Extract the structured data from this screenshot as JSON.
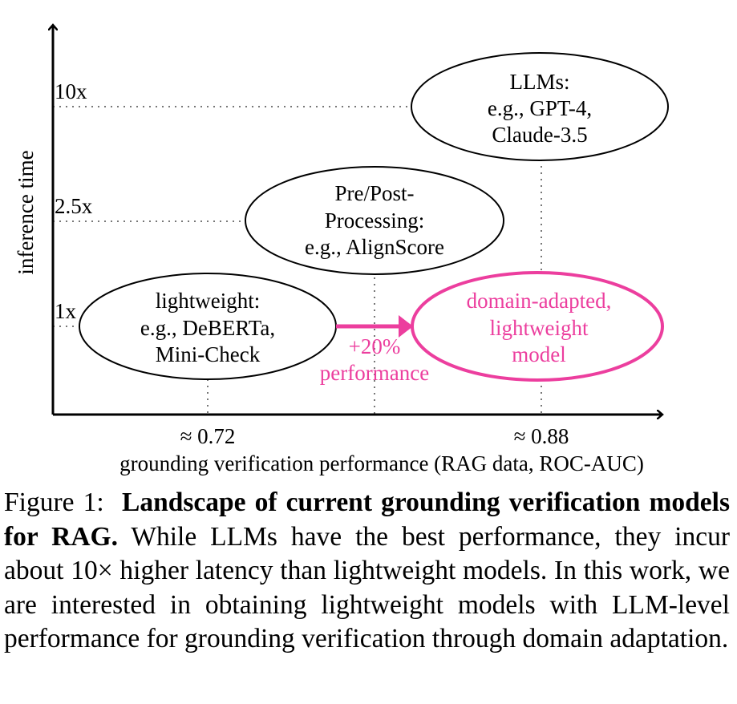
{
  "diagram": {
    "y_axis_label": "inference time",
    "x_axis_label": "grounding verification performance (RAG data, ROC-AUC)",
    "y_ticks": [
      "10x",
      "2.5x",
      "1x"
    ],
    "x_ticks": [
      "≈ 0.72",
      "≈ 0.88"
    ],
    "nodes": {
      "llms": [
        "LLMs:",
        "e.g., GPT-4,",
        "Claude-3.5"
      ],
      "prepost": [
        "Pre/Post-",
        "Processing:",
        "e.g., AlignScore"
      ],
      "lightweight": [
        "lightweight:",
        "e.g., DeBERTa,",
        "Mini-Check"
      ],
      "domain_adapted": [
        "domain-adapted,",
        "lightweight",
        "model"
      ]
    },
    "arrow_label": [
      "+20%",
      "performance"
    ],
    "accent_color": "#ec3e9e"
  },
  "caption": {
    "figure_label": "Figure 1:",
    "bold_title": "Landscape of current grounding verification models for RAG.",
    "body": "While LLMs have the best performance, they incur about 10× higher latency than lightweight models. In this work, we are interested in obtaining lightweight models with LLM-level performance for grounding verification through domain adaptation."
  }
}
